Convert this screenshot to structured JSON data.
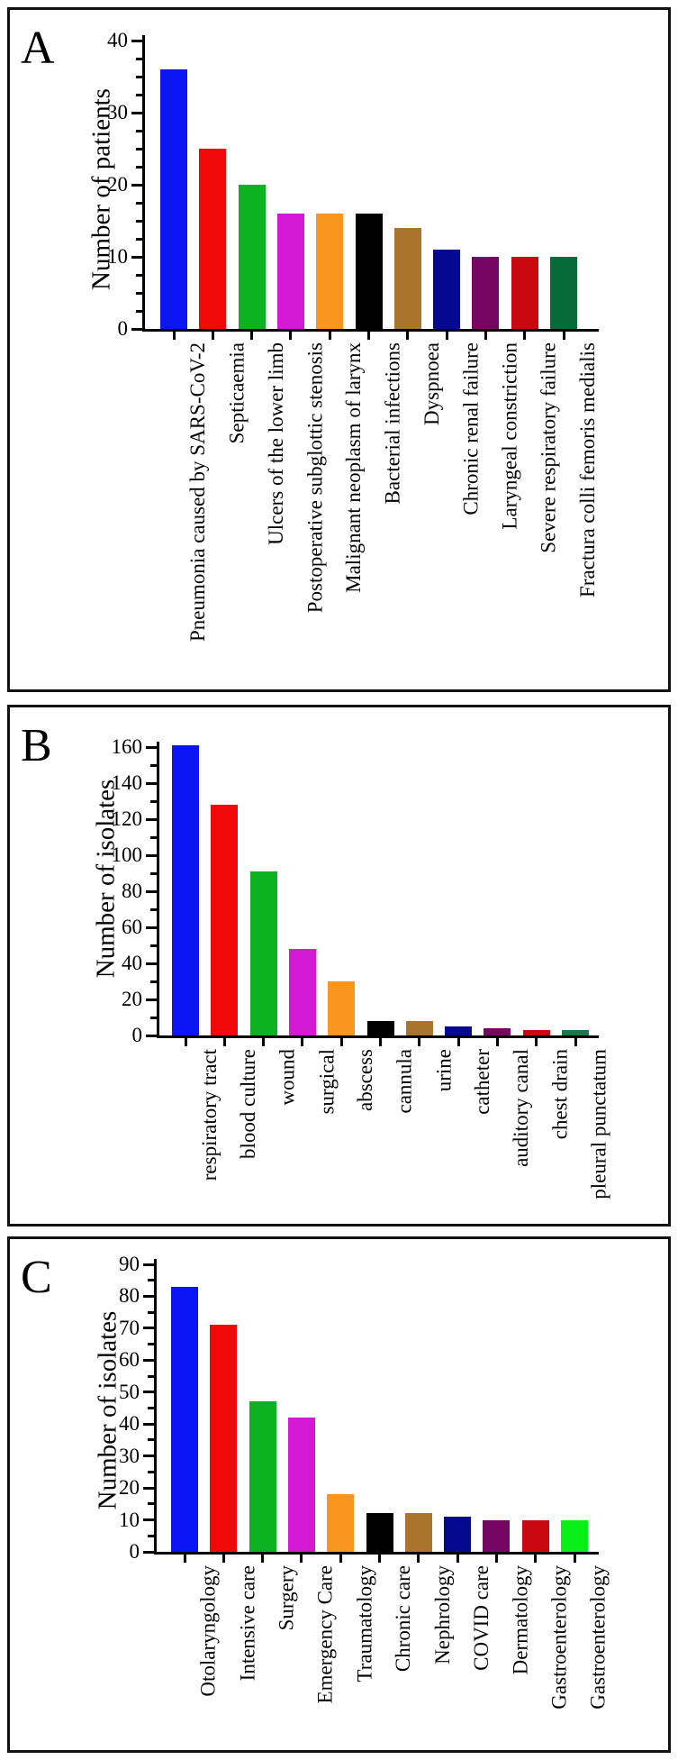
{
  "figure": {
    "description": "Three-panel bar chart figure (panels A, B, C)"
  },
  "chart_data": [
    {
      "type": "bar",
      "panel": "A",
      "title": "",
      "xlabel": "",
      "ylabel": "Number of patients",
      "ylim": [
        0,
        40
      ],
      "ytick_step": 10,
      "yminor_step": 2.5,
      "grid": false,
      "legend": "none",
      "categories": [
        "Pneumonia caused by SARS-CoV-2",
        "Septicaemia",
        "Ulcers of the lower limb",
        "Postoperative subglottic stenosis",
        "Malignant neoplasm of larynx",
        "Bacterial infections",
        "Dyspnoea",
        "Chronic renal failure",
        "Laryngeal constriction",
        "Severe respiratory failure",
        "Fractura colli femoris medialis"
      ],
      "values": [
        36,
        25,
        20,
        16,
        16,
        16,
        14,
        11,
        10,
        10,
        10
      ],
      "bar_colors": [
        "#0b16f2",
        "#f10808",
        "#0db221",
        "#d419d4",
        "#f8961f",
        "#000000",
        "#a9742c",
        "#04098f",
        "#750763",
        "#c9090f",
        "#066b38"
      ]
    },
    {
      "type": "bar",
      "panel": "B",
      "title": "",
      "xlabel": "",
      "ylabel": "Number of isolates",
      "ylim": [
        0,
        160
      ],
      "ytick_step": 20,
      "yminor_step": 10,
      "grid": false,
      "legend": "none",
      "categories": [
        "respiratory tract",
        "blood culture",
        "wound",
        "surgical",
        "abscess",
        "cannula",
        "urine",
        "catheter",
        "auditory canal",
        "chest drain",
        "pleural punctatum"
      ],
      "values": [
        161,
        128,
        91,
        48,
        30,
        8,
        8,
        5,
        4,
        3,
        3
      ],
      "bar_colors": [
        "#0b16f2",
        "#f10808",
        "#0db221",
        "#d419d4",
        "#f8961f",
        "#000000",
        "#a9742c",
        "#04098f",
        "#750763",
        "#c9090f",
        "#177a4c"
      ]
    },
    {
      "type": "bar",
      "panel": "C",
      "title": "",
      "xlabel": "",
      "ylabel": "Number of isolates",
      "ylim": [
        0,
        90
      ],
      "ytick_step": 10,
      "yminor_step": 5,
      "grid": false,
      "legend": "none",
      "categories": [
        "Otolaryngology",
        "Intensive care",
        "Surgery",
        "Emergency Care",
        "Traumatology",
        "Chronic care",
        "Nephrology",
        "COVID care",
        "Dermatology",
        "Gastroenterology",
        "Gastroenterology"
      ],
      "values": [
        83,
        71,
        47,
        42,
        18,
        12,
        12,
        11,
        10,
        10,
        10
      ],
      "bar_colors": [
        "#0b16f2",
        "#f10808",
        "#0db221",
        "#d419d4",
        "#f8961f",
        "#000000",
        "#a9742c",
        "#04098f",
        "#750763",
        "#c9090f",
        "#09f019"
      ]
    }
  ]
}
